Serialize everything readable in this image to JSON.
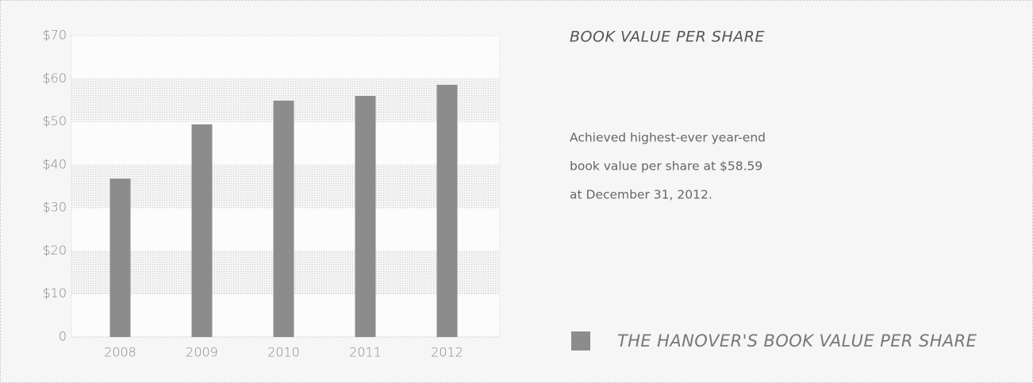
{
  "chart_data": {
    "type": "bar",
    "title": "BOOK VALUE PER SHARE",
    "annotations": [
      "Achieved highest-ever year-end",
      "book value per share at $58.59",
      "at December 31, 2012."
    ],
    "categories": [
      "2008",
      "2009",
      "2010",
      "2011",
      "2012"
    ],
    "series": [
      {
        "name": "THE HANOVER'S BOOK VALUE PER SHARE",
        "color": "#8c8c8c",
        "values": [
          36.8,
          49.4,
          54.9,
          56.0,
          58.59
        ]
      }
    ],
    "ylim": [
      0,
      70
    ],
    "yticks": [
      0,
      {
        "value": 10,
        "label": "$10"
      },
      {
        "value": 20,
        "label": "$20"
      },
      {
        "value": 30,
        "label": "$30"
      },
      {
        "value": 40,
        "label": "$40"
      },
      {
        "value": 50,
        "label": "$50"
      },
      {
        "value": 60,
        "label": "$60"
      },
      {
        "value": 70,
        "label": "$70"
      }
    ],
    "grid": true,
    "legend": "bottom-right"
  }
}
